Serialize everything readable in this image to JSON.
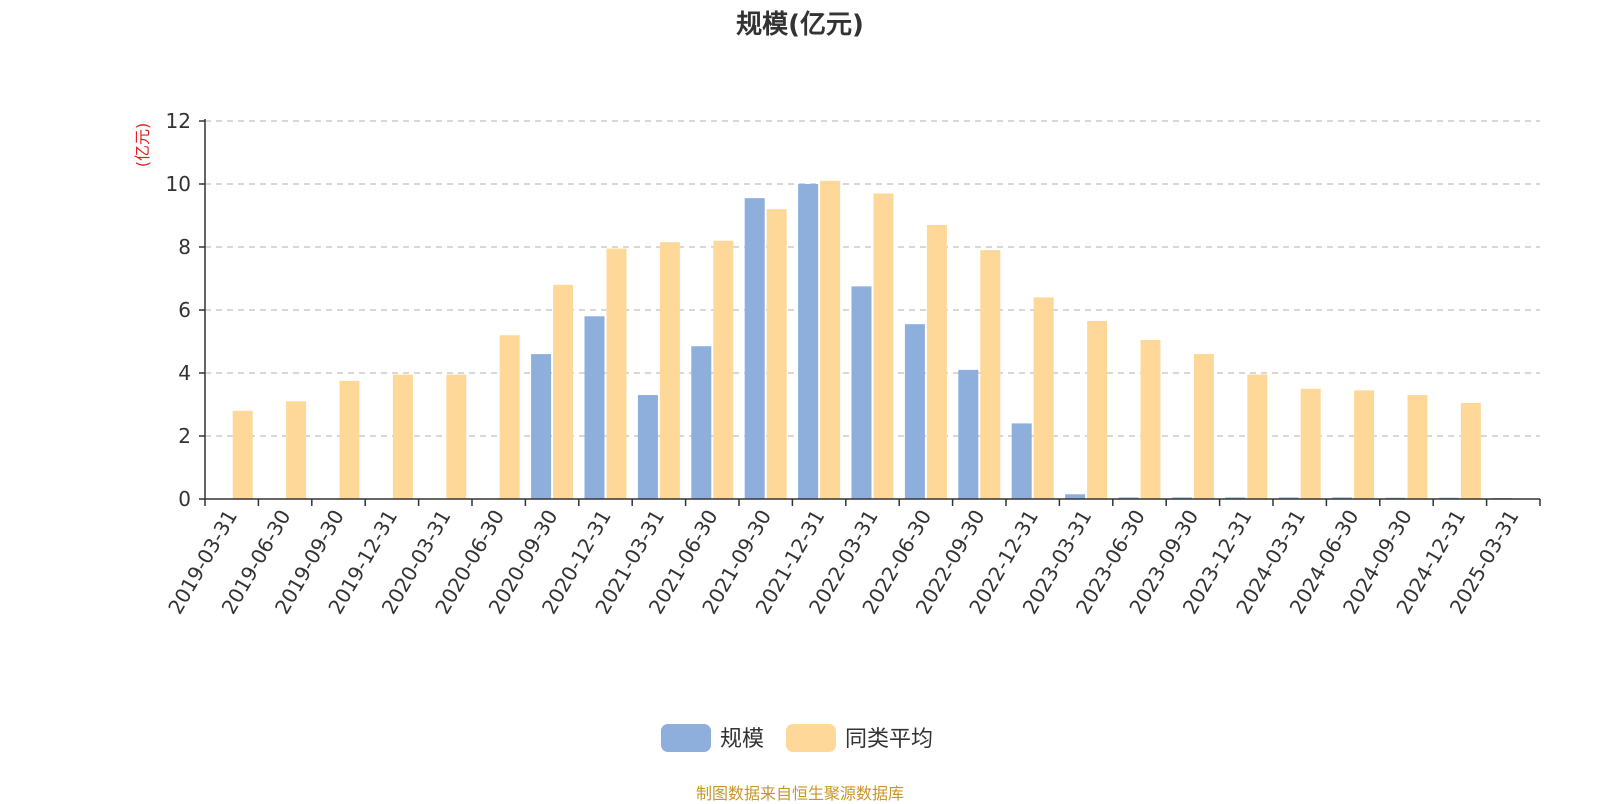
{
  "chart_data": {
    "type": "bar",
    "title": "规模(亿元)",
    "ylabel": "(亿元)",
    "xlabel": "",
    "ylim": [
      0,
      12
    ],
    "yticks": [
      0,
      2,
      4,
      6,
      8,
      10,
      12
    ],
    "grid": true,
    "legend_position": "bottom-center",
    "categories": [
      "2019-03-31",
      "2019-06-30",
      "2019-09-30",
      "2019-12-31",
      "2020-03-31",
      "2020-06-30",
      "2020-09-30",
      "2020-12-31",
      "2021-03-31",
      "2021-06-30",
      "2021-09-30",
      "2021-12-31",
      "2022-03-31",
      "2022-06-30",
      "2022-09-30",
      "2022-12-31",
      "2023-03-31",
      "2023-06-30",
      "2023-09-30",
      "2023-12-31",
      "2024-03-31",
      "2024-06-30",
      "2024-09-30",
      "2024-12-31",
      "2025-03-31"
    ],
    "series": [
      {
        "name": "规模",
        "color": "#8eaedb",
        "values": [
          0,
          0,
          0,
          0,
          0,
          0,
          4.6,
          5.8,
          3.3,
          4.85,
          9.55,
          10.0,
          6.75,
          5.55,
          4.1,
          2.4,
          0.15,
          0.05,
          0.05,
          0.05,
          0.05,
          0.05,
          0.04,
          0.04,
          0.03
        ]
      },
      {
        "name": "同类平均",
        "color": "#fed898",
        "values": [
          2.8,
          3.1,
          3.75,
          3.95,
          3.95,
          5.2,
          6.8,
          7.95,
          8.15,
          8.2,
          9.2,
          10.1,
          9.7,
          8.7,
          7.9,
          6.4,
          5.65,
          5.05,
          4.6,
          3.95,
          3.5,
          3.45,
          3.3,
          3.05,
          0
        ]
      }
    ]
  },
  "footer": {
    "source": "制图数据来自恒生聚源数据库"
  }
}
